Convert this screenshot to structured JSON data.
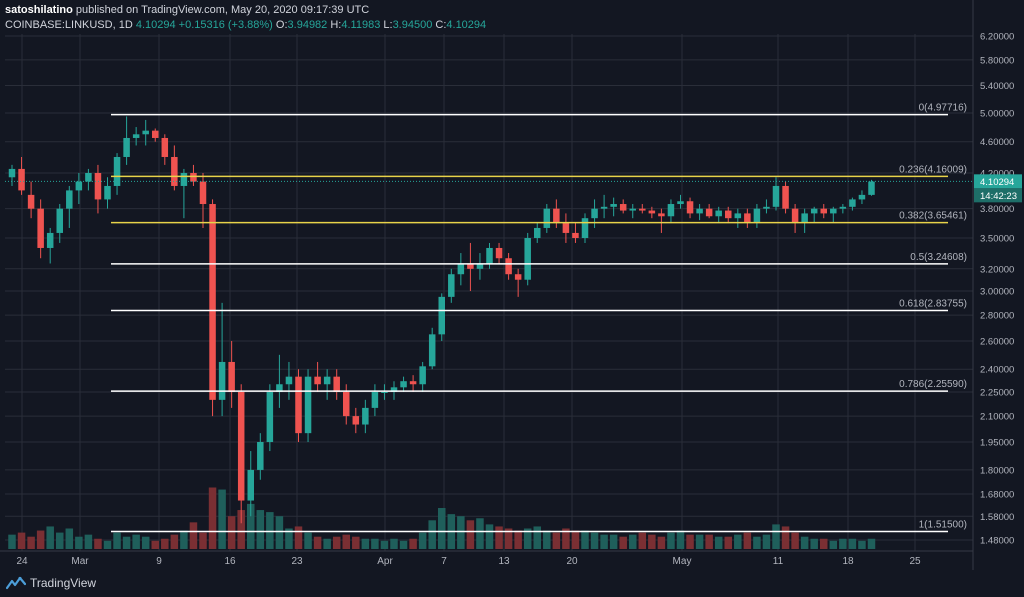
{
  "header": {
    "author": "satoshilatino",
    "published": " published on TradingView.com, May 20, 2020 09:17:39 UTC",
    "symbol": "COINBASE:LINKUSD, 1D",
    "last": "4.10294",
    "change": "+0.15316 (+3.88%)",
    "o_label": "O:",
    "o": "3.94982",
    "h_label": "H:",
    "h": "4.11983",
    "l_label": "L:",
    "l": "3.94500",
    "c_label": "C:",
    "c": "4.10294"
  },
  "footer": {
    "brand": "TradingView",
    "logo_icon": "tradingview-logo-icon"
  },
  "colors": {
    "bg": "#131722",
    "up": "#26a69a",
    "down": "#ef5350",
    "vol_up": "#1f5f5b",
    "vol_down": "#7a2f33",
    "fib_white": "#ffffff",
    "fib_yellow": "#e8d34a",
    "grid": "#2a2e39",
    "axis_text": "#b2b5be"
  },
  "chart_data": {
    "type": "candlestick",
    "x_tick_labels": [
      "24",
      "Mar",
      "9",
      "16",
      "23",
      "Apr",
      "7",
      "13",
      "20",
      "May",
      "11",
      "18",
      "25"
    ],
    "y_tick_labels": [
      "6.20000",
      "5.80000",
      "5.40000",
      "5.00000",
      "4.60000",
      "4.20000",
      "3.80000",
      "3.50000",
      "3.20000",
      "3.00000",
      "2.80000",
      "2.60000",
      "2.40000",
      "2.25000",
      "2.10000",
      "1.95000",
      "1.80000",
      "1.68000",
      "1.58000",
      "1.48000"
    ],
    "price_label": "4.10294",
    "countdown_label": "14:42:23",
    "fib_levels": [
      {
        "label": "0(4.97716)",
        "value": 4.97716,
        "color": "white"
      },
      {
        "label": "0.236(4.16009)",
        "value": 4.16009,
        "color": "yellow"
      },
      {
        "label": "0.382(3.65461)",
        "value": 3.65461,
        "color": "yellow"
      },
      {
        "label": "0.5(3.24608)",
        "value": 3.24608,
        "color": "white"
      },
      {
        "label": "0.618(2.83755)",
        "value": 2.83755,
        "color": "white"
      },
      {
        "label": "0.786(2.25590)",
        "value": 2.2559,
        "color": "white"
      },
      {
        "label": "1(1.51500)",
        "value": 1.515,
        "color": "white"
      }
    ],
    "candles": [
      [
        4.15,
        4.3,
        4.05,
        4.25,
        7
      ],
      [
        4.25,
        4.4,
        3.95,
        4.0,
        8
      ],
      [
        3.95,
        4.1,
        3.7,
        3.8,
        6
      ],
      [
        3.8,
        3.9,
        3.3,
        3.4,
        9
      ],
      [
        3.4,
        3.6,
        3.25,
        3.55,
        11
      ],
      [
        3.55,
        3.85,
        3.45,
        3.8,
        8
      ],
      [
        3.8,
        4.05,
        3.6,
        4.0,
        10
      ],
      [
        4.0,
        4.2,
        3.85,
        4.1,
        6
      ],
      [
        4.1,
        4.25,
        4.0,
        4.2,
        7
      ],
      [
        4.2,
        4.3,
        3.75,
        3.9,
        5
      ],
      [
        3.9,
        4.15,
        3.8,
        4.05,
        4
      ],
      [
        4.05,
        4.45,
        3.95,
        4.4,
        8
      ],
      [
        4.4,
        4.95,
        4.3,
        4.65,
        6
      ],
      [
        4.65,
        4.8,
        4.55,
        4.7,
        7
      ],
      [
        4.7,
        4.9,
        4.55,
        4.75,
        6
      ],
      [
        4.75,
        4.78,
        4.6,
        4.65,
        4
      ],
      [
        4.65,
        4.7,
        4.3,
        4.4,
        5
      ],
      [
        4.4,
        4.55,
        4.0,
        4.05,
        7
      ],
      [
        4.05,
        4.25,
        3.7,
        4.2,
        9
      ],
      [
        4.2,
        4.3,
        4.05,
        4.1,
        13
      ],
      [
        4.1,
        4.2,
        3.6,
        3.85,
        8
      ],
      [
        3.85,
        3.9,
        2.1,
        2.2,
        30
      ],
      [
        2.2,
        2.9,
        2.1,
        2.45,
        29
      ],
      [
        2.45,
        2.6,
        2.15,
        2.25,
        16
      ],
      [
        2.25,
        2.3,
        1.55,
        1.65,
        19
      ],
      [
        1.65,
        1.9,
        1.58,
        1.8,
        22
      ],
      [
        1.8,
        2.0,
        1.75,
        1.95,
        19
      ],
      [
        1.95,
        2.3,
        1.9,
        2.25,
        18
      ],
      [
        2.25,
        2.5,
        2.15,
        2.3,
        16
      ],
      [
        2.3,
        2.45,
        2.2,
        2.35,
        10
      ],
      [
        2.35,
        2.4,
        1.95,
        2.0,
        11
      ],
      [
        2.0,
        2.4,
        1.95,
        2.35,
        8
      ],
      [
        2.35,
        2.45,
        2.25,
        2.3,
        6
      ],
      [
        2.3,
        2.4,
        2.2,
        2.35,
        5
      ],
      [
        2.35,
        2.4,
        2.2,
        2.25,
        6
      ],
      [
        2.25,
        2.3,
        2.05,
        2.1,
        7
      ],
      [
        2.1,
        2.15,
        2.0,
        2.05,
        6
      ],
      [
        2.05,
        2.2,
        2.0,
        2.15,
        5
      ],
      [
        2.15,
        2.3,
        2.1,
        2.25,
        5
      ],
      [
        2.25,
        2.3,
        2.2,
        2.25,
        4
      ],
      [
        2.25,
        2.32,
        2.2,
        2.28,
        5
      ],
      [
        2.28,
        2.35,
        2.25,
        2.32,
        4
      ],
      [
        2.32,
        2.36,
        2.25,
        2.3,
        5
      ],
      [
        2.3,
        2.45,
        2.25,
        2.42,
        8
      ],
      [
        2.42,
        2.7,
        2.4,
        2.65,
        14
      ],
      [
        2.65,
        2.98,
        2.6,
        2.95,
        20
      ],
      [
        2.95,
        3.2,
        2.9,
        3.15,
        17
      ],
      [
        3.15,
        3.35,
        3.05,
        3.25,
        16
      ],
      [
        3.25,
        3.45,
        3.0,
        3.2,
        14
      ],
      [
        3.2,
        3.35,
        3.1,
        3.25,
        15
      ],
      [
        3.25,
        3.45,
        3.2,
        3.4,
        12
      ],
      [
        3.4,
        3.45,
        3.25,
        3.3,
        11
      ],
      [
        3.3,
        3.35,
        3.1,
        3.15,
        10
      ],
      [
        3.15,
        3.2,
        2.95,
        3.1,
        9
      ],
      [
        3.1,
        3.55,
        3.05,
        3.5,
        10
      ],
      [
        3.5,
        3.65,
        3.45,
        3.6,
        11
      ],
      [
        3.6,
        3.85,
        3.55,
        3.8,
        9
      ],
      [
        3.8,
        3.9,
        3.6,
        3.65,
        8
      ],
      [
        3.65,
        3.75,
        3.45,
        3.55,
        10
      ],
      [
        3.55,
        3.65,
        3.45,
        3.5,
        9
      ],
      [
        3.5,
        3.75,
        3.45,
        3.7,
        9
      ],
      [
        3.7,
        3.9,
        3.6,
        3.8,
        8
      ],
      [
        3.8,
        3.95,
        3.7,
        3.82,
        7
      ],
      [
        3.82,
        3.92,
        3.72,
        3.85,
        7
      ],
      [
        3.85,
        3.9,
        3.75,
        3.78,
        6
      ],
      [
        3.78,
        3.85,
        3.7,
        3.8,
        7
      ],
      [
        3.8,
        3.85,
        3.75,
        3.78,
        8
      ],
      [
        3.78,
        3.82,
        3.7,
        3.75,
        7
      ],
      [
        3.75,
        3.8,
        3.55,
        3.72,
        6
      ],
      [
        3.72,
        3.9,
        3.65,
        3.85,
        8
      ],
      [
        3.85,
        3.95,
        3.8,
        3.88,
        9
      ],
      [
        3.88,
        3.92,
        3.7,
        3.75,
        7
      ],
      [
        3.75,
        3.85,
        3.68,
        3.8,
        7
      ],
      [
        3.8,
        3.85,
        3.7,
        3.72,
        7
      ],
      [
        3.72,
        3.82,
        3.65,
        3.78,
        6
      ],
      [
        3.78,
        3.82,
        3.65,
        3.7,
        6
      ],
      [
        3.7,
        3.8,
        3.6,
        3.75,
        7
      ],
      [
        3.75,
        3.8,
        3.6,
        3.65,
        8
      ],
      [
        3.65,
        3.85,
        3.6,
        3.8,
        6
      ],
      [
        3.8,
        3.9,
        3.75,
        3.82,
        7
      ],
      [
        3.82,
        4.15,
        3.78,
        4.05,
        12
      ],
      [
        4.05,
        4.1,
        3.75,
        3.8,
        11
      ],
      [
        3.8,
        3.85,
        3.55,
        3.65,
        8
      ],
      [
        3.65,
        3.8,
        3.55,
        3.75,
        6
      ],
      [
        3.75,
        3.82,
        3.65,
        3.8,
        5
      ],
      [
        3.8,
        3.85,
        3.7,
        3.75,
        5
      ],
      [
        3.75,
        3.82,
        3.65,
        3.8,
        4
      ],
      [
        3.8,
        3.85,
        3.75,
        3.82,
        5
      ],
      [
        3.82,
        3.92,
        3.78,
        3.9,
        5
      ],
      [
        3.9,
        4.0,
        3.85,
        3.95,
        4
      ],
      [
        3.95,
        4.12,
        3.94,
        4.1,
        5
      ]
    ]
  }
}
